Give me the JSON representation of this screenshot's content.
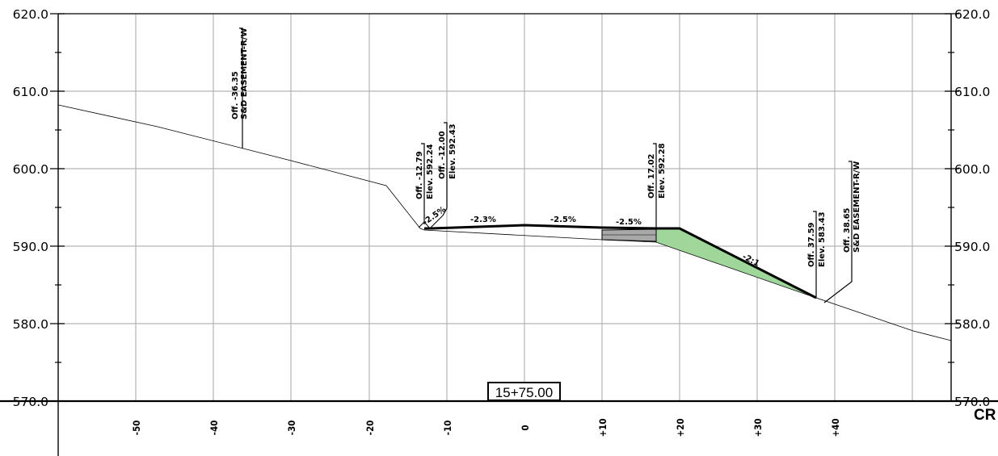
{
  "drawing": {
    "title_fragment": "CR",
    "station_label": "15+75.00",
    "elevation_labels": [
      "620.0",
      "610.0",
      "600.0",
      "590.0",
      "580.0",
      "570.0"
    ],
    "offset_labels": [
      "-50",
      "-40",
      "-30",
      "-20",
      "-10",
      "0",
      "+10",
      "+20",
      "+30",
      "+40"
    ],
    "elevation_range": [
      570,
      620
    ],
    "offset_range": [
      -60,
      55
    ]
  },
  "callouts": [
    {
      "id": "easement-left",
      "line1": "Off. -36.35",
      "line2": "S&D EASEMENT-R/W"
    },
    {
      "id": "point-1279",
      "line1": "Off. -12.79",
      "line2": "Elev. 592.24"
    },
    {
      "id": "point-1200",
      "line1": "Off. -12.00",
      "line2": "Elev. 592.43"
    },
    {
      "id": "point-1702",
      "line1": "Off. 17.02",
      "line2": "Elev. 592.28"
    },
    {
      "id": "point-3759",
      "line1": "Off. 37.59",
      "line2": "Elev. 583.43"
    },
    {
      "id": "easement-right",
      "line1": "Off. 38.65",
      "line2": "S&D EASEMENT-R/W"
    }
  ],
  "slopes": [
    {
      "id": "slope-ditch",
      "text": "-2.5%"
    },
    {
      "id": "slope-1",
      "text": "-2.3%"
    },
    {
      "id": "slope-2",
      "text": "-2.5%"
    },
    {
      "id": "slope-3",
      "text": "-2.5%"
    },
    {
      "id": "slope-fill",
      "text": "-2:1"
    }
  ],
  "colors": {
    "grid": "#b4b4b4",
    "fill_area": "#9fd79a",
    "pavement": "#a8a8a8",
    "line": "#000000"
  }
}
